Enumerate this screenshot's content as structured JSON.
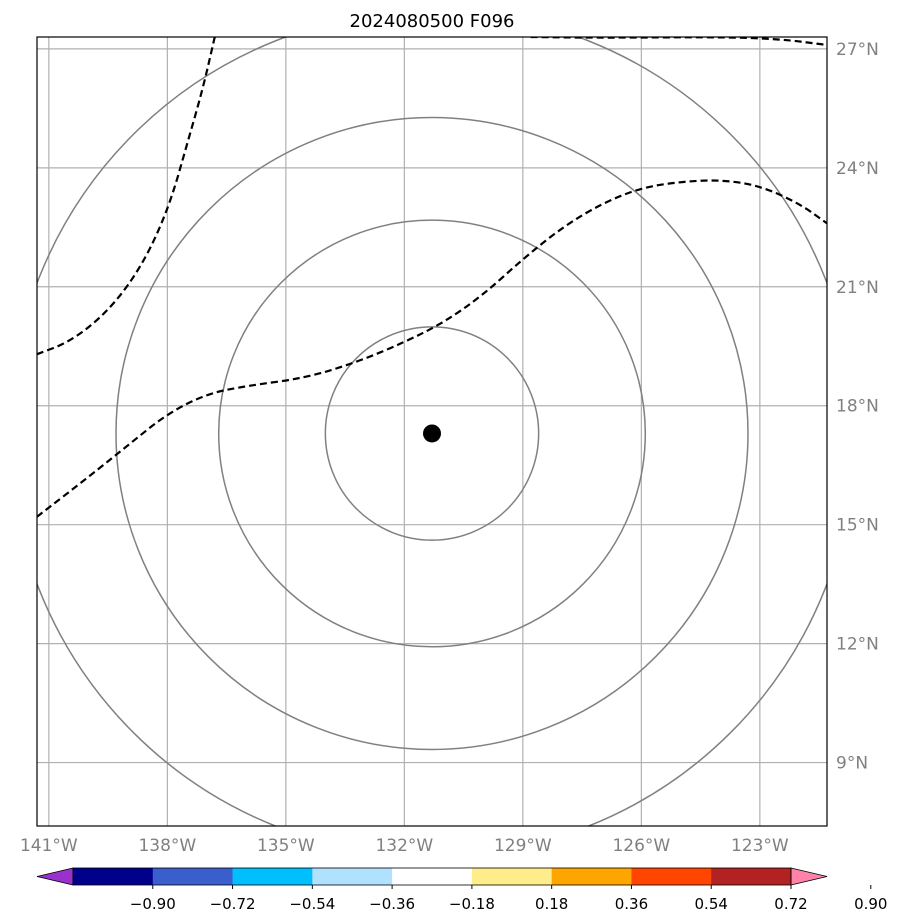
{
  "title": "2024080500 F096",
  "map": {
    "lon_range": [
      -141.3,
      -121.3
    ],
    "lat_range": [
      7.4,
      27.3
    ],
    "meridians": [
      {
        "lon": -141,
        "label": "141°W"
      },
      {
        "lon": -138,
        "label": "138°W"
      },
      {
        "lon": -135,
        "label": "135°W"
      },
      {
        "lon": -132,
        "label": "132°W"
      },
      {
        "lon": -129,
        "label": "129°W"
      },
      {
        "lon": -126,
        "label": "126°W"
      },
      {
        "lon": -123,
        "label": "123°W"
      }
    ],
    "parallels": [
      {
        "lat": 9,
        "label": "9°N"
      },
      {
        "lat": 12,
        "label": "12°N"
      },
      {
        "lat": 15,
        "label": "15°N"
      },
      {
        "lat": 18,
        "label": "18°N"
      },
      {
        "lat": 21,
        "label": "21°N"
      },
      {
        "lat": 24,
        "label": "24°N"
      },
      {
        "lat": 27,
        "label": "27°N"
      }
    ],
    "center": {
      "lon": -131.3,
      "lat": 17.3
    },
    "range_ring_radii_deg": [
      2.7,
      5.4,
      8.0,
      10.7
    ],
    "grid_color": "#b0b0b0",
    "ring_color": "#808080",
    "contour_color": "#000000",
    "dashed_contours": [
      {
        "points": [
          [
            -141.3,
            15.2
          ],
          [
            -140,
            16.2
          ],
          [
            -139,
            17.0
          ],
          [
            -138,
            17.8
          ],
          [
            -137,
            18.3
          ],
          [
            -136,
            18.5
          ],
          [
            -134.5,
            18.7
          ],
          [
            -133.2,
            19.1
          ],
          [
            -132,
            19.6
          ],
          [
            -131,
            20.1
          ],
          [
            -130,
            20.8
          ],
          [
            -129,
            21.7
          ],
          [
            -128,
            22.5
          ],
          [
            -127,
            23.1
          ],
          [
            -126,
            23.5
          ],
          [
            -125,
            23.65
          ],
          [
            -124,
            23.7
          ],
          [
            -123,
            23.55
          ],
          [
            -122,
            23.1
          ],
          [
            -121.3,
            22.6
          ]
        ]
      },
      {
        "points": [
          [
            -141.3,
            19.3
          ],
          [
            -140.5,
            19.6
          ],
          [
            -139.7,
            20.2
          ],
          [
            -139,
            21.0
          ],
          [
            -138.4,
            22.0
          ],
          [
            -137.9,
            23.2
          ],
          [
            -137.5,
            24.6
          ],
          [
            -137.1,
            26.0
          ],
          [
            -136.8,
            27.3
          ]
        ]
      },
      {
        "points": [
          [
            -128.8,
            27.3
          ],
          [
            -127,
            27.28
          ],
          [
            -124,
            27.3
          ],
          [
            -122.5,
            27.25
          ],
          [
            -121.3,
            27.1
          ]
        ]
      }
    ]
  },
  "colorbar": {
    "colors": [
      "#9932cc",
      "#00008b",
      "#3a5fcd",
      "#00bfff",
      "#b0e2ff",
      "#ffffff",
      "#ffec8b",
      "#ffa500",
      "#ff4500",
      "#b22222",
      "#ff82ab"
    ],
    "ticks": [
      "−0.90",
      "−0.72",
      "−0.54",
      "−0.36",
      "−0.18",
      "0.18",
      "0.36",
      "0.54",
      "0.72",
      "0.90"
    ]
  }
}
